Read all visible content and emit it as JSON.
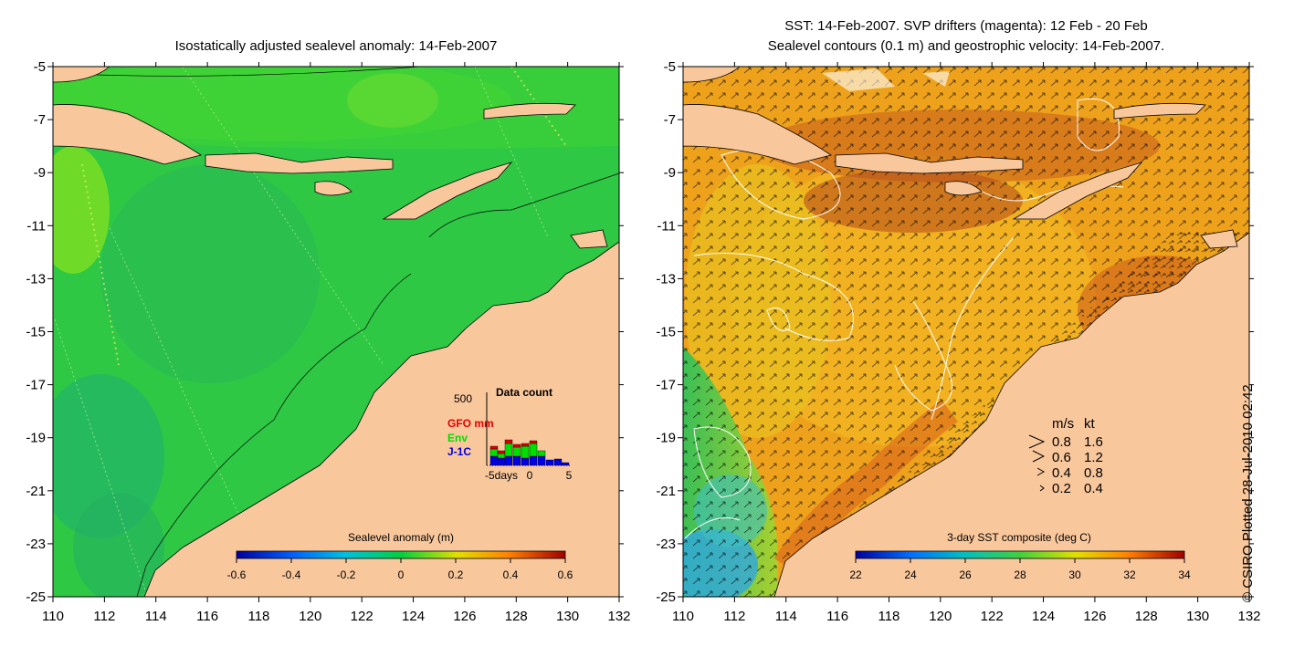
{
  "left_panel": {
    "title": "Isostatically adjusted sealevel anomaly: 14-Feb-2007",
    "x_ticks": [
      "110",
      "112",
      "114",
      "116",
      "118",
      "120",
      "122",
      "124",
      "126",
      "128",
      "130",
      "132"
    ],
    "y_ticks": [
      "-5",
      "-7",
      "-9",
      "-11",
      "-13",
      "-15",
      "-17",
      "-19",
      "-21",
      "-23",
      "-25"
    ],
    "colorbar": {
      "title": "Sealevel anomaly (m)",
      "ticks": [
        "-0.6",
        "-0.4",
        "-0.2",
        "0",
        "0.2",
        "0.4",
        "0.6"
      ]
    },
    "inset": {
      "title": "Data count",
      "ymax_label": "500",
      "legend": [
        {
          "name": "GFO mm",
          "color": "#e00000"
        },
        {
          "name": "Env",
          "color": "#00e000"
        },
        {
          "name": "J-1C",
          "color": "#0000e0"
        }
      ],
      "x_labels": [
        "-5days",
        "0",
        "5"
      ]
    }
  },
  "right_panel": {
    "title_line1": "SST: 14-Feb-2007. SVP drifters (magenta): 12 Feb - 20 Feb",
    "title_line2": "Sealevel contours (0.1 m) and geostrophic velocity: 14-Feb-2007.",
    "x_ticks": [
      "110",
      "112",
      "114",
      "116",
      "118",
      "120",
      "122",
      "124",
      "126",
      "128",
      "130",
      "132"
    ],
    "y_ticks": [
      "-5",
      "-7",
      "-9",
      "-11",
      "-13",
      "-15",
      "-17",
      "-19",
      "-21",
      "-23",
      "-25"
    ],
    "colorbar": {
      "title": "3-day SST composite (deg C)",
      "ticks": [
        "22",
        "24",
        "26",
        "28",
        "30",
        "32",
        "34"
      ]
    },
    "velocity_legend": {
      "header_ms": "m/s",
      "header_kt": "kt",
      "rows": [
        {
          "ms": "0.8",
          "kt": "1.6"
        },
        {
          "ms": "0.6",
          "kt": "1.2"
        },
        {
          "ms": "0.4",
          "kt": "0.8"
        },
        {
          "ms": "0.2",
          "kt": "0.4"
        }
      ]
    }
  },
  "copyright": "© CSIRO Plotted 28-Jul-2010 02:42",
  "colors": {
    "land": "#f9c79c",
    "sla_ocean": "#22c44a",
    "sla_shelf": "#33d43a",
    "sst_warm": "#f0a21a",
    "sst_hot": "#c8541a",
    "sst_cool": "#4cc45a"
  }
}
